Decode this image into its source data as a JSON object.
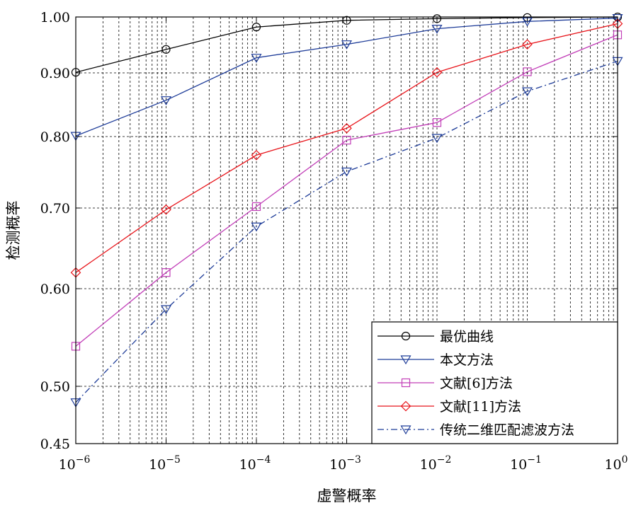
{
  "chart_data": {
    "type": "line",
    "xlabel": "虚警概率",
    "ylabel": "检测概率",
    "x_scale": "log",
    "x": [
      1e-06,
      1e-05,
      0.0001,
      0.001,
      0.01,
      0.1,
      1
    ],
    "x_tick_labels": [
      {
        "base": "10",
        "exp": "−6"
      },
      {
        "base": "10",
        "exp": "−5"
      },
      {
        "base": "10",
        "exp": "−4"
      },
      {
        "base": "10",
        "exp": "−3"
      },
      {
        "base": "10",
        "exp": "−2"
      },
      {
        "base": "10",
        "exp": "−1"
      },
      {
        "base": "10",
        "exp": "0"
      }
    ],
    "y_ticks": [
      0.45,
      0.5,
      0.6,
      0.7,
      0.8,
      0.9,
      1.0
    ],
    "y_tick_labels": [
      "0.45",
      "0.50",
      "0.60",
      "0.70",
      "0.80",
      "0.90",
      "1.00"
    ],
    "ylim": [
      0.45,
      1.0
    ],
    "grid": true,
    "legend_position": "bottom-right",
    "series": [
      {
        "name": "最优曲线",
        "color": "#000000",
        "marker": "circle",
        "dash": "solid",
        "values": [
          0.901,
          0.942,
          0.982,
          0.994,
          0.997,
          0.999,
          1.0
        ]
      },
      {
        "name": "本文方法",
        "color": "#1f3d99",
        "marker": "triangle-down",
        "dash": "solid",
        "values": [
          0.801,
          0.857,
          0.927,
          0.951,
          0.979,
          0.992,
          0.998
        ]
      },
      {
        "name": "文献[6]方法",
        "color": "#c23fb8",
        "marker": "square",
        "dash": "solid",
        "values": [
          0.541,
          0.62,
          0.702,
          0.795,
          0.822,
          0.902,
          0.968
        ]
      },
      {
        "name": "文献[11]方法",
        "color": "#e8151b",
        "marker": "diamond",
        "dash": "solid",
        "values": [
          0.62,
          0.698,
          0.774,
          0.813,
          0.901,
          0.951,
          0.988
        ]
      },
      {
        "name": "传统二维匹配滤波方法",
        "color": "#1f3d99",
        "marker": "triangle-down",
        "dash": "dashdot",
        "values": [
          0.486,
          0.579,
          0.677,
          0.751,
          0.798,
          0.871,
          0.921
        ]
      }
    ]
  }
}
